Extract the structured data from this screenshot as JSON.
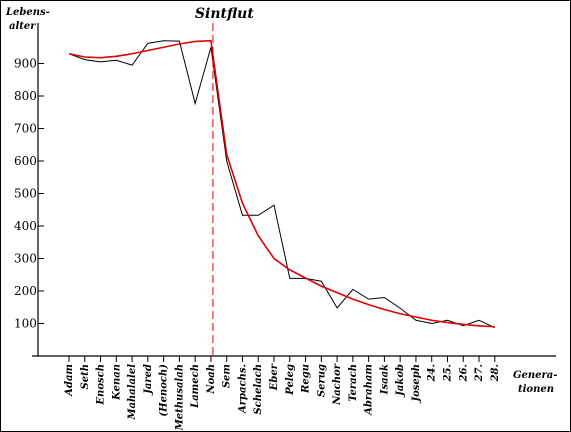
{
  "chart_data": {
    "type": "line",
    "title": "Sintflut",
    "ylabel_lines": [
      "Lebens-",
      "alter"
    ],
    "xlabel_lines": [
      "Genera-",
      "tionen"
    ],
    "yticks": [
      100,
      200,
      300,
      400,
      500,
      600,
      700,
      800,
      900
    ],
    "ylim": [
      0,
      1000
    ],
    "categories": [
      "Adam",
      "Seth",
      "Enosch",
      "Kenan",
      "Mahalalel",
      "Jared",
      "(Henoch)",
      "Methusalah",
      "Lamech",
      "Noah",
      "Sem",
      "Arpachs.",
      "Schelach",
      "Eber",
      "Peleg",
      "Regu",
      "Serug",
      "Nachor",
      "Terach",
      "Abraham",
      "Isaak",
      "Jakob",
      "Joseph",
      "24.",
      "25.",
      "26.",
      "27.",
      "28."
    ],
    "series": [
      {
        "color": "#000000",
        "values": [
          930,
          912,
          905,
          910,
          895,
          962,
          970,
          969,
          777,
          950,
          600,
          433,
          433,
          464,
          239,
          239,
          230,
          148,
          205,
          175,
          180,
          147,
          110,
          100,
          110,
          93,
          110,
          87
        ]
      },
      {
        "color": "#e00000",
        "values": [
          930,
          920,
          918,
          922,
          930,
          940,
          950,
          960,
          968,
          970,
          620,
          470,
          370,
          300,
          265,
          240,
          215,
          195,
          175,
          158,
          143,
          130,
          120,
          110,
          103,
          97,
          93,
          90
        ]
      }
    ],
    "marker_color": "#e00000"
  }
}
